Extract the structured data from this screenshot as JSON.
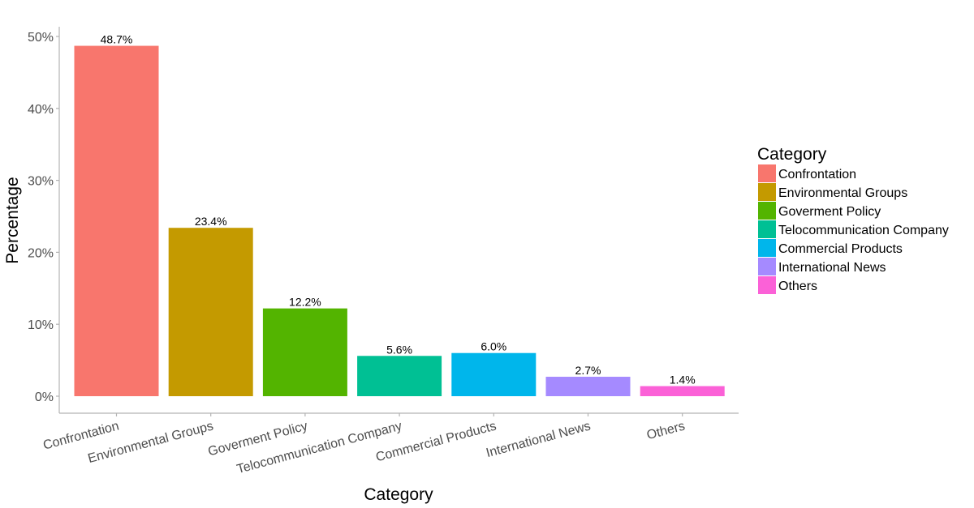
{
  "chart_data": {
    "type": "bar",
    "categories": [
      "Confrontation",
      "Environmental Groups",
      "Goverment Policy",
      "Telocommunication Company",
      "Commercial Products",
      "International News",
      "Others"
    ],
    "values": [
      48.7,
      23.4,
      12.2,
      5.6,
      6.0,
      2.7,
      1.4
    ],
    "value_labels": [
      "48.7%",
      "23.4%",
      "12.2%",
      "5.6%",
      "6.0%",
      "2.7%",
      "1.4%"
    ],
    "colors": [
      "#F8766D",
      "#C49A00",
      "#53B400",
      "#00C094",
      "#00B6EB",
      "#A58AFF",
      "#FB61D7"
    ],
    "title": "",
    "xlabel": "Category",
    "ylabel": "Percentage",
    "ylim": [
      0,
      50
    ],
    "yticks": [
      0,
      10,
      20,
      30,
      40,
      50
    ],
    "ytick_labels": [
      "0%",
      "10%",
      "20%",
      "30%",
      "40%",
      "50%"
    ],
    "grid": false,
    "legend": {
      "title": "Category",
      "placement": "right",
      "entries": [
        "Confrontation",
        "Environmental Groups",
        "Goverment Policy",
        "Telocommunication Company",
        "Commercial Products",
        "International News",
        "Others"
      ]
    }
  }
}
